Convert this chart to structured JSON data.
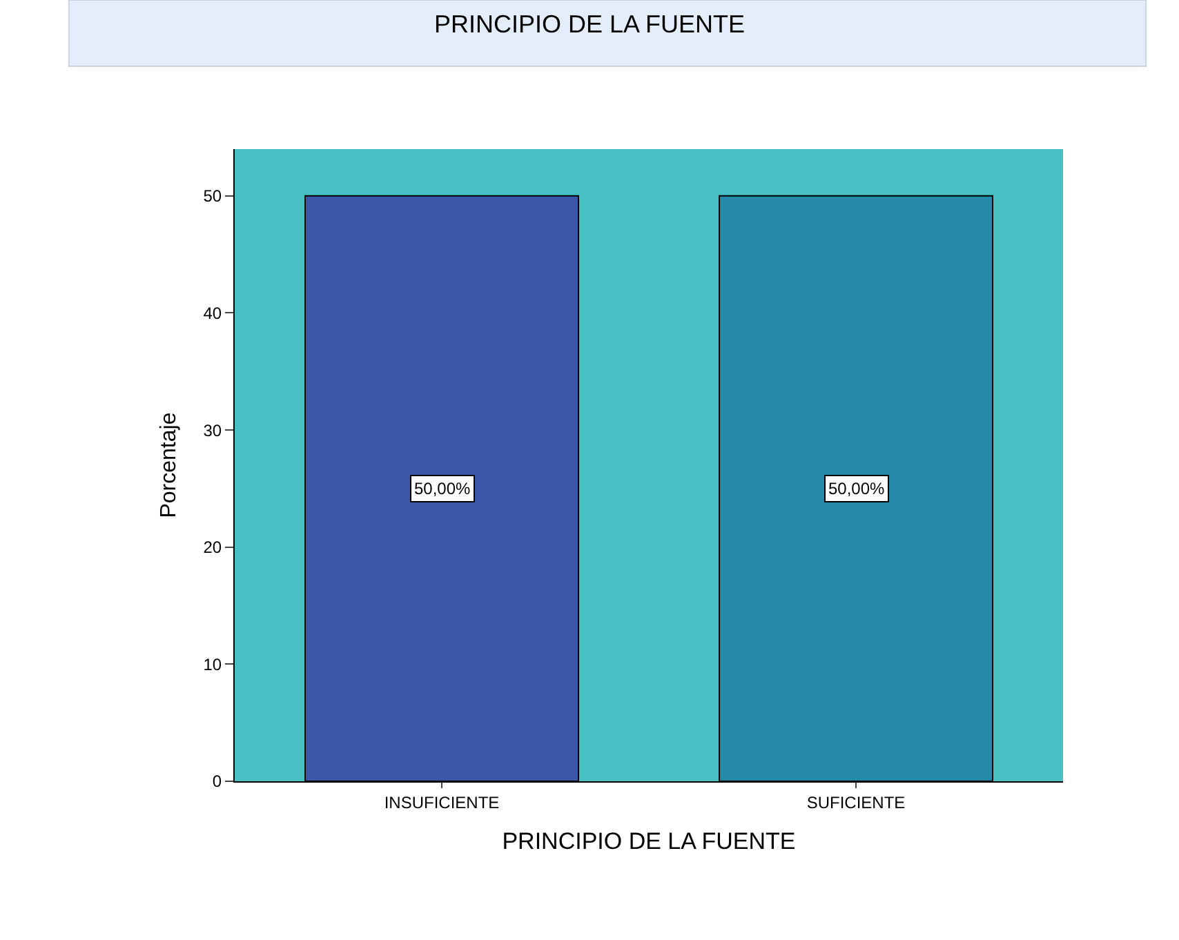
{
  "chart_data": {
    "type": "bar",
    "title": "PRINCIPIO DE LA FUENTE",
    "xlabel": "PRINCIPIO DE LA FUENTE",
    "ylabel": "Porcentaje",
    "categories": [
      "INSUFICIENTE",
      "SUFICIENTE"
    ],
    "values": [
      50,
      50
    ],
    "colors": [
      "#3d57a8",
      "#248aa8"
    ],
    "value_labels": [
      "50,00%",
      "50,00%"
    ],
    "ylim": [
      0,
      54
    ],
    "yticks": [
      0,
      10,
      20,
      30,
      40,
      50
    ],
    "grid": false
  }
}
